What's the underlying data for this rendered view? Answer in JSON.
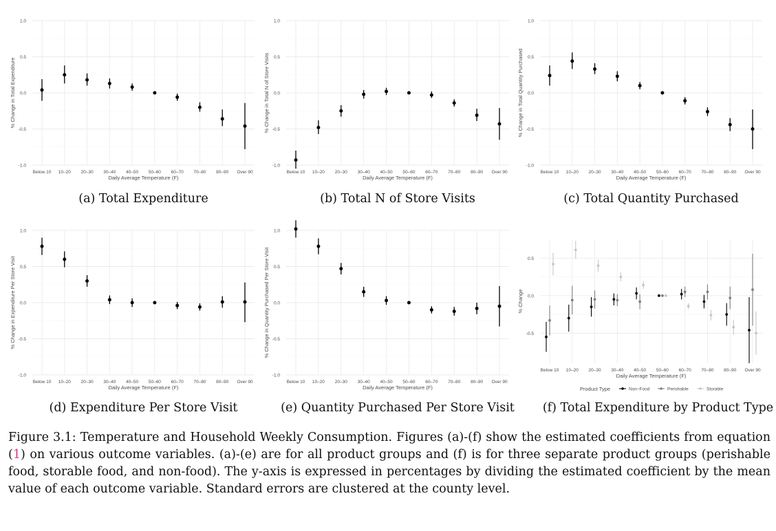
{
  "categories": [
    "Below 10",
    "10–20",
    "20–30",
    "30–40",
    "40–50",
    "50–60",
    "60–70",
    "70–80",
    "80–90",
    "Over 90"
  ],
  "xlabel": "Daily Average Temperature (F)",
  "colors": {
    "point": "#000000",
    "grid": "#ebebeb",
    "non_food": "#000000",
    "perishable": "#7f7f7f",
    "storable": "#c6c6c6"
  },
  "chart_data": [
    {
      "type": "scatter",
      "subcaption": "(a) Total Expenditure",
      "ylabel": "% Change in Total Expenditure",
      "xlabel": "Daily Average Temperature (F)",
      "ylim": [
        -1.0,
        1.0
      ],
      "yticks": [
        "-1.0",
        "-0.5",
        "0.0",
        "0.5",
        "1.0"
      ],
      "ytick_values": [
        -1.0,
        -0.5,
        0.0,
        0.5,
        1.0
      ],
      "grid": true,
      "estimates": [
        0.04,
        0.25,
        0.18,
        0.13,
        0.08,
        0.0,
        -0.06,
        -0.2,
        -0.36,
        -0.46
      ],
      "lower": [
        -0.11,
        0.13,
        0.1,
        0.06,
        0.03,
        0.0,
        -0.11,
        -0.26,
        -0.46,
        -0.78
      ],
      "upper": [
        0.19,
        0.38,
        0.27,
        0.2,
        0.13,
        0.0,
        -0.01,
        -0.13,
        -0.23,
        -0.14
      ]
    },
    {
      "type": "scatter",
      "subcaption": "(b) Total N of Store Visits",
      "ylabel": "% Change in Total N of Store Visits",
      "xlabel": "Daily Average Temperature (F)",
      "ylim": [
        -1.0,
        1.0
      ],
      "yticks": [
        "-1.0",
        "-0.5",
        "0.0",
        "0.5",
        "1.0"
      ],
      "ytick_values": [
        -1.0,
        -0.5,
        0.0,
        0.5,
        1.0
      ],
      "grid": true,
      "estimates": [
        -0.93,
        -0.48,
        -0.25,
        -0.02,
        0.02,
        0.0,
        -0.03,
        -0.14,
        -0.31,
        -0.43
      ],
      "lower": [
        -1.05,
        -0.57,
        -0.33,
        -0.08,
        -0.03,
        0.0,
        -0.07,
        -0.19,
        -0.39,
        -0.65
      ],
      "upper": [
        -0.8,
        -0.38,
        -0.17,
        0.04,
        0.07,
        0.0,
        0.02,
        -0.09,
        -0.22,
        -0.21
      ]
    },
    {
      "type": "scatter",
      "subcaption": "(c) Total Quantity Purchased",
      "ylabel": "% Change in Total Quantity Purchased",
      "xlabel": "Daily Average Temperature (F)",
      "ylim": [
        -1.0,
        1.0
      ],
      "yticks": [
        "-1.0",
        "-0.5",
        "0.0",
        "0.5",
        "1.0"
      ],
      "ytick_values": [
        -1.0,
        -0.5,
        0.0,
        0.5,
        1.0
      ],
      "grid": true,
      "estimates": [
        0.24,
        0.44,
        0.33,
        0.23,
        0.1,
        0.0,
        -0.11,
        -0.26,
        -0.44,
        -0.5
      ],
      "lower": [
        0.1,
        0.33,
        0.26,
        0.16,
        0.05,
        0.0,
        -0.16,
        -0.32,
        -0.53,
        -0.78
      ],
      "upper": [
        0.38,
        0.56,
        0.41,
        0.3,
        0.15,
        0.0,
        -0.06,
        -0.2,
        -0.35,
        -0.23
      ]
    },
    {
      "type": "scatter",
      "subcaption": "(d) Expenditure Per Store Visit",
      "ylabel": "% Change in Expenditure Per Store Visit",
      "xlabel": "Daily Average Temperature (F)",
      "ylim": [
        -1.0,
        1.0
      ],
      "yticks": [
        "-1.0",
        "-0.5",
        "0.0",
        "0.5",
        "1.0"
      ],
      "ytick_values": [
        -1.0,
        -0.5,
        0.0,
        0.5,
        1.0
      ],
      "grid": true,
      "estimates": [
        0.78,
        0.6,
        0.3,
        0.04,
        0.0,
        0.0,
        -0.04,
        -0.06,
        0.01,
        0.01
      ],
      "lower": [
        0.66,
        0.49,
        0.22,
        -0.02,
        -0.06,
        0.0,
        -0.09,
        -0.11,
        -0.07,
        -0.27
      ],
      "upper": [
        0.9,
        0.71,
        0.38,
        0.1,
        0.06,
        0.0,
        0.01,
        -0.01,
        0.09,
        0.28
      ]
    },
    {
      "type": "scatter",
      "subcaption": "(e) Quantity Purchased Per Store Visit",
      "ylabel": "% Change in Quantity Purchased Per Store Visit",
      "xlabel": "Daily Average Temperature (F)",
      "ylim": [
        -1.0,
        1.0
      ],
      "yticks": [
        "-1.0",
        "-0.5",
        "0.0",
        "0.5",
        "1.0"
      ],
      "ytick_values": [
        -1.0,
        -0.5,
        0.0,
        0.5,
        1.0
      ],
      "grid": true,
      "estimates": [
        1.02,
        0.78,
        0.47,
        0.15,
        0.03,
        0.0,
        -0.1,
        -0.12,
        -0.08,
        -0.05
      ],
      "lower": [
        0.9,
        0.67,
        0.39,
        0.08,
        -0.03,
        0.0,
        -0.15,
        -0.18,
        -0.16,
        -0.33
      ],
      "upper": [
        1.14,
        0.89,
        0.55,
        0.22,
        0.09,
        0.0,
        -0.05,
        -0.06,
        0.0,
        0.23
      ]
    },
    {
      "type": "scatter",
      "subcaption": "(f) Total Expenditure by Product Type",
      "ylabel": "% Change",
      "xlabel": "Daily Average Temperature (F)",
      "ylim": [
        -0.9,
        0.75
      ],
      "yticks": [
        "-0.5",
        "0.0",
        "0.5"
      ],
      "ytick_values": [
        -0.5,
        0.0,
        0.5
      ],
      "grid": true,
      "legend": {
        "title": "Product Type",
        "position": "bottom"
      },
      "series": [
        {
          "name": "Non–Food",
          "estimates": [
            -0.55,
            -0.3,
            -0.15,
            -0.05,
            0.03,
            0.0,
            0.02,
            -0.08,
            -0.25,
            -0.46
          ],
          "lower": [
            -0.75,
            -0.48,
            -0.28,
            -0.13,
            -0.05,
            0.0,
            -0.05,
            -0.17,
            -0.4,
            -0.9
          ],
          "upper": [
            -0.35,
            -0.12,
            -0.02,
            0.03,
            0.11,
            0.0,
            0.09,
            0.01,
            -0.1,
            -0.02
          ]
        },
        {
          "name": "Perishable",
          "estimates": [
            -0.33,
            -0.06,
            -0.05,
            -0.06,
            -0.08,
            0.0,
            0.05,
            0.05,
            -0.03,
            0.08
          ],
          "lower": [
            -0.53,
            -0.25,
            -0.17,
            -0.14,
            -0.18,
            0.0,
            -0.02,
            -0.05,
            -0.18,
            -0.4
          ],
          "upper": [
            -0.13,
            0.13,
            0.07,
            0.02,
            0.02,
            0.0,
            0.12,
            0.15,
            0.12,
            0.56
          ]
        },
        {
          "name": "Storable",
          "estimates": [
            0.42,
            0.61,
            0.4,
            0.25,
            0.14,
            0.0,
            -0.14,
            -0.26,
            -0.42,
            -0.5
          ],
          "lower": [
            0.27,
            0.49,
            0.32,
            0.19,
            0.09,
            0.0,
            -0.18,
            -0.33,
            -0.52,
            -0.79
          ],
          "upper": [
            0.57,
            0.73,
            0.48,
            0.31,
            0.19,
            0.0,
            -0.1,
            -0.19,
            -0.32,
            -0.21
          ]
        }
      ]
    }
  ],
  "caption": {
    "label": "Figure 3.1:",
    "text_before_ref": " Temperature and Household Weekly Consumption. Figures (a)-(f) show the estimated coefficients from equation (",
    "ref": "1",
    "text_after_ref": ") on various outcome variables. (a)-(e) are for all product groups and (f) is for three separate product groups (perishable food, storable food, and non-food). The y-axis is expressed in percentages by dividing the estimated coefficient by the mean value of each outcome variable. Standard errors are clustered at the county level."
  }
}
